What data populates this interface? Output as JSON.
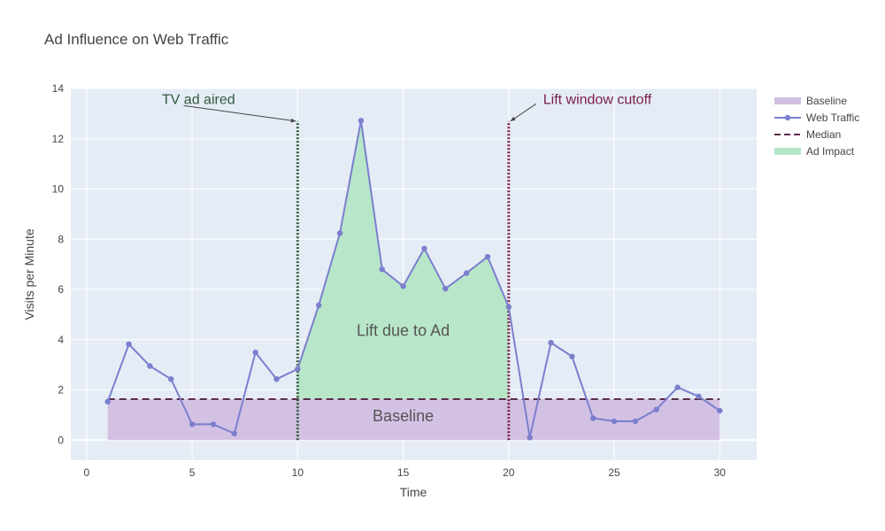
{
  "chart_data": {
    "type": "line",
    "title": "Ad Influence on Web Traffic",
    "xlabel": "Time",
    "ylabel": "Visits per Minute",
    "xlim": [
      -0.75,
      31.75
    ],
    "ylim": [
      -0.8,
      14
    ],
    "x_ticks": [
      0,
      5,
      10,
      15,
      20,
      25,
      30
    ],
    "y_ticks": [
      0,
      2,
      4,
      6,
      8,
      10,
      12,
      14
    ],
    "grid": true,
    "legend_position": "top-right",
    "colors": {
      "plot_bg": "#e5ecf6",
      "grid": "#ffffff",
      "traffic": "#7b7fce",
      "baseline_fill": "#d2bfe3",
      "impact_fill": "#b5e6c6",
      "median": "#5a2d4a",
      "ad_line": "#2d5a3c",
      "cutoff_line": "#7a1f4a"
    },
    "series": [
      {
        "name": "Web Traffic",
        "x": [
          1,
          2,
          3,
          4,
          5,
          6,
          7,
          8,
          9,
          10,
          11,
          12,
          13,
          14,
          15,
          16,
          17,
          18,
          19,
          20,
          21,
          22,
          23,
          24,
          25,
          26,
          27,
          28,
          29,
          30
        ],
        "values": [
          1.53,
          3.82,
          2.95,
          2.43,
          0.63,
          0.63,
          0.26,
          3.49,
          2.43,
          2.83,
          5.37,
          8.24,
          12.72,
          6.8,
          6.13,
          7.63,
          6.03,
          6.65,
          7.3,
          5.3,
          0.1,
          3.88,
          3.33,
          0.87,
          0.75,
          0.75,
          1.22,
          2.1,
          1.74,
          1.17
        ]
      }
    ],
    "median": {
      "name": "Median",
      "value": 1.63
    },
    "baseline": {
      "name": "Baseline",
      "x_start": 1,
      "x_end": 30,
      "value": 1.63,
      "label": "Baseline"
    },
    "ad_impact": {
      "name": "Ad Impact",
      "x_start": 10,
      "x_end": 20,
      "label": "Lift due to Ad"
    },
    "annotations": [
      {
        "text": "TV ad aired",
        "x": 10,
        "y_top": 12.7,
        "color": "#2d5a3c"
      },
      {
        "text": "Lift window cutoff",
        "x": 20,
        "y_top": 12.7,
        "color": "#7a1f4a"
      }
    ],
    "legend": [
      "Baseline",
      "Web Traffic",
      "Median",
      "Ad Impact"
    ]
  }
}
